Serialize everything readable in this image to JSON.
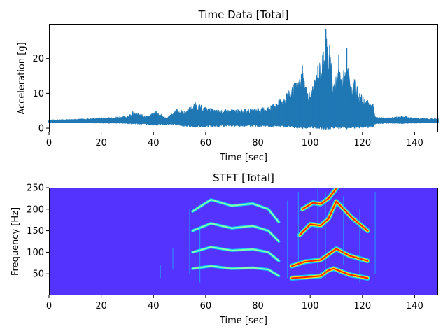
{
  "chart_data": [
    {
      "type": "line",
      "title": "Time Data [Total]",
      "xlabel": "Time [sec]",
      "ylabel": "Acceleration [g]",
      "xlim": [
        0,
        149
      ],
      "ylim": [
        -1.2,
        30
      ],
      "xticks": [
        0,
        20,
        40,
        60,
        80,
        100,
        120,
        140
      ],
      "yticks": [
        0,
        10,
        20
      ],
      "color": "#1f77b4",
      "baseline": 2.0,
      "envelope": [
        {
          "t": 0,
          "low": 1.6,
          "high": 2.4
        },
        {
          "t": 10,
          "low": 1.5,
          "high": 2.6
        },
        {
          "t": 20,
          "low": 1.4,
          "high": 3.0
        },
        {
          "t": 30,
          "low": 1.3,
          "high": 3.5
        },
        {
          "t": 32,
          "low": 1.2,
          "high": 4.8
        },
        {
          "t": 38,
          "low": 1.0,
          "high": 3.5
        },
        {
          "t": 41,
          "low": 0.8,
          "high": 5.0
        },
        {
          "t": 45,
          "low": 1.0,
          "high": 3.0
        },
        {
          "t": 49,
          "low": 0.8,
          "high": 5.5
        },
        {
          "t": 52,
          "low": 0.5,
          "high": 5.0
        },
        {
          "t": 56,
          "low": 0.2,
          "high": 7.5
        },
        {
          "t": 60,
          "low": 0.3,
          "high": 6.0
        },
        {
          "t": 65,
          "low": 0.4,
          "high": 5.2
        },
        {
          "t": 70,
          "low": 0.5,
          "high": 5.5
        },
        {
          "t": 75,
          "low": 0.5,
          "high": 5.5
        },
        {
          "t": 80,
          "low": 0.4,
          "high": 5.8
        },
        {
          "t": 85,
          "low": 0.3,
          "high": 6.5
        },
        {
          "t": 88,
          "low": 0.3,
          "high": 8.0
        },
        {
          "t": 91,
          "low": 0.2,
          "high": 10.0
        },
        {
          "t": 94,
          "low": 0.0,
          "high": 13.0
        },
        {
          "t": 96,
          "low": 0.0,
          "high": 14.0
        },
        {
          "t": 97,
          "low": -0.2,
          "high": 18.0
        },
        {
          "t": 99,
          "low": 0.0,
          "high": 10.0
        },
        {
          "t": 101,
          "low": 0.0,
          "high": 12.0
        },
        {
          "t": 103,
          "low": -0.1,
          "high": 18.0
        },
        {
          "t": 105,
          "low": -0.3,
          "high": 22.0
        },
        {
          "t": 106,
          "low": -0.5,
          "high": 28.5
        },
        {
          "t": 107.5,
          "low": -0.3,
          "high": 24.0
        },
        {
          "t": 109,
          "low": 0.0,
          "high": 12.0
        },
        {
          "t": 111,
          "low": -0.2,
          "high": 21.0
        },
        {
          "t": 112,
          "low": 0.0,
          "high": 14.0
        },
        {
          "t": 114,
          "low": -0.3,
          "high": 23.0
        },
        {
          "t": 115.5,
          "low": 0.0,
          "high": 12.0
        },
        {
          "t": 117,
          "low": -0.1,
          "high": 14.0
        },
        {
          "t": 119,
          "low": 0.0,
          "high": 10.0
        },
        {
          "t": 122,
          "low": 0.1,
          "high": 8.0
        },
        {
          "t": 124,
          "low": 0.3,
          "high": 7.0
        },
        {
          "t": 125,
          "low": 1.2,
          "high": 3.2
        },
        {
          "t": 130,
          "low": 1.4,
          "high": 3.0
        },
        {
          "t": 135,
          "low": 1.3,
          "high": 3.6
        },
        {
          "t": 140,
          "low": 1.4,
          "high": 3.0
        },
        {
          "t": 149,
          "low": 1.6,
          "high": 2.7
        }
      ]
    },
    {
      "type": "heatmap",
      "title": "STFT [Total]",
      "xlabel": "Time [sec]",
      "ylabel": "Frequency [Hz]",
      "xlim": [
        0,
        149
      ],
      "ylim": [
        0,
        250
      ],
      "xticks": [
        0,
        20,
        40,
        60,
        80,
        100,
        120,
        140
      ],
      "yticks": [
        50,
        100,
        150,
        200,
        250
      ],
      "background_color": "#5533ff",
      "colormap": [
        "#5533ff",
        "#00ddff",
        "#88ffaa",
        "#ffee00",
        "#ff2200",
        "#cc0000"
      ],
      "harmonic_bands": [
        {
          "points": [
            [
              55,
              62
            ],
            [
              62,
              68
            ],
            [
              70,
              62
            ],
            [
              78,
              64
            ],
            [
              84,
              60
            ],
            [
              88,
              45
            ]
          ],
          "intensity": 0.35
        },
        {
          "points": [
            [
              55,
              100
            ],
            [
              62,
              112
            ],
            [
              70,
              104
            ],
            [
              78,
              107
            ],
            [
              84,
              100
            ],
            [
              88,
              80
            ]
          ],
          "intensity": 0.35
        },
        {
          "points": [
            [
              55,
              150
            ],
            [
              62,
              167
            ],
            [
              70,
              156
            ],
            [
              78,
              161
            ],
            [
              84,
              150
            ],
            [
              88,
              125
            ]
          ],
          "intensity": 0.3
        },
        {
          "points": [
            [
              55,
              195
            ],
            [
              62,
              222
            ],
            [
              70,
              208
            ],
            [
              78,
              213
            ],
            [
              84,
              200
            ],
            [
              88,
              170
            ]
          ],
          "intensity": 0.25
        },
        {
          "points": [
            [
              93,
              40
            ],
            [
              98,
              42
            ],
            [
              104,
              45
            ],
            [
              107,
              58
            ],
            [
              109,
              62
            ],
            [
              115,
              48
            ],
            [
              122,
              40
            ]
          ],
          "intensity": 0.95
        },
        {
          "points": [
            [
              93,
              68
            ],
            [
              98,
              78
            ],
            [
              104,
              82
            ],
            [
              107,
              95
            ],
            [
              110,
              108
            ],
            [
              115,
              92
            ],
            [
              122,
              80
            ]
          ],
          "intensity": 0.9
        },
        {
          "points": [
            [
              96,
              140
            ],
            [
              100,
              165
            ],
            [
              104,
              162
            ],
            [
              107,
              178
            ],
            [
              110,
              218
            ],
            [
              116,
              180
            ],
            [
              122,
              150
            ]
          ],
          "intensity": 0.75
        },
        {
          "points": [
            [
              97,
              200
            ],
            [
              101,
              215
            ],
            [
              104,
              212
            ],
            [
              107,
              225
            ],
            [
              110,
              248
            ]
          ],
          "intensity": 0.7
        }
      ]
    }
  ]
}
